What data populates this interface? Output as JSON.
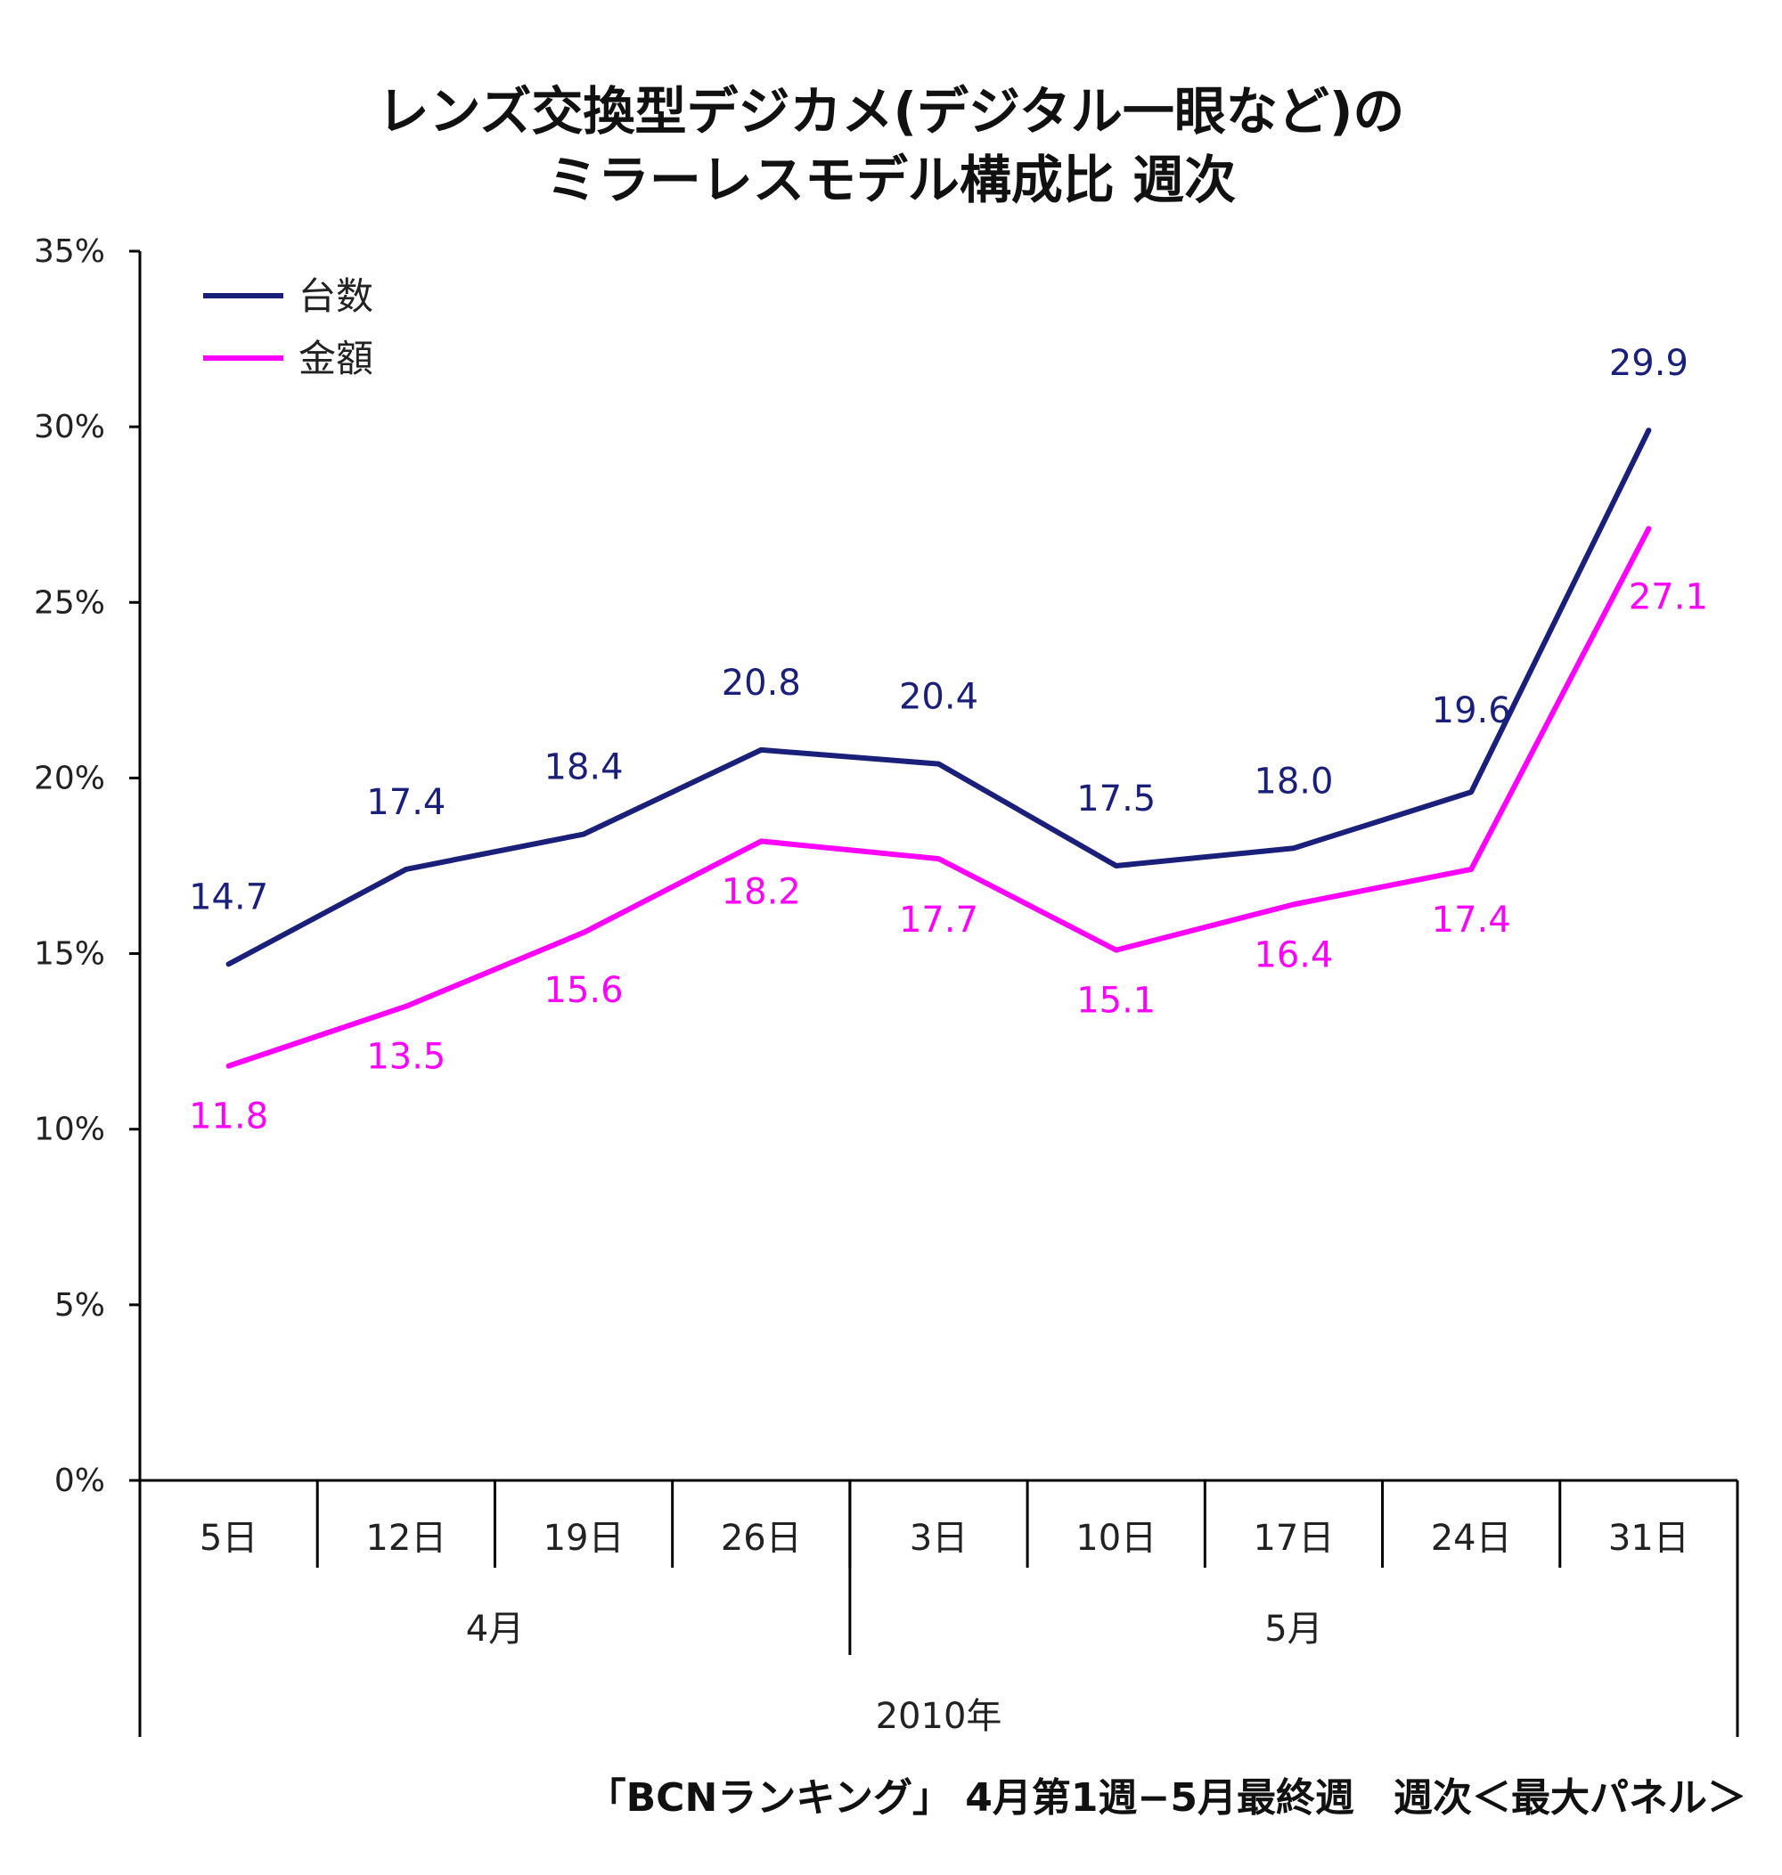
{
  "chart_data": {
    "type": "line",
    "title": [
      "レンズ交換型デジカメ(デジタル一眼など)の",
      "ミラーレスモデル構成比 週次"
    ],
    "categories": [
      "5日",
      "12日",
      "19日",
      "26日",
      "3日",
      "10日",
      "17日",
      "24日",
      "31日"
    ],
    "month_groups": [
      {
        "label": "4月",
        "count": 4
      },
      {
        "label": "5月",
        "count": 5
      }
    ],
    "year_label": "2010年",
    "yticks": [
      "0%",
      "5%",
      "10%",
      "15%",
      "20%",
      "25%",
      "30%",
      "35%"
    ],
    "ylim": [
      0,
      35
    ],
    "series": [
      {
        "name": "台数",
        "color": "#1a1f7a",
        "values": [
          14.7,
          17.4,
          18.4,
          20.8,
          20.4,
          17.5,
          18.0,
          19.6,
          29.9
        ],
        "labels": [
          "14.7",
          "17.4",
          "18.4",
          "20.8",
          "20.4",
          "17.5",
          "18.0",
          "19.6",
          "29.9"
        ]
      },
      {
        "name": "金額",
        "color": "#ff00ff",
        "values": [
          11.8,
          13.5,
          15.6,
          18.2,
          17.7,
          15.1,
          16.4,
          17.4,
          27.1
        ],
        "labels": [
          "11.8",
          "13.5",
          "15.6",
          "18.2",
          "17.7",
          "15.1",
          "16.4",
          "17.4",
          "27.1"
        ]
      }
    ],
    "legend_position": "top-left",
    "grid": false
  },
  "source_note": "「BCNランキング」 4月第1週−5月最終週　週次＜最大パネル＞"
}
